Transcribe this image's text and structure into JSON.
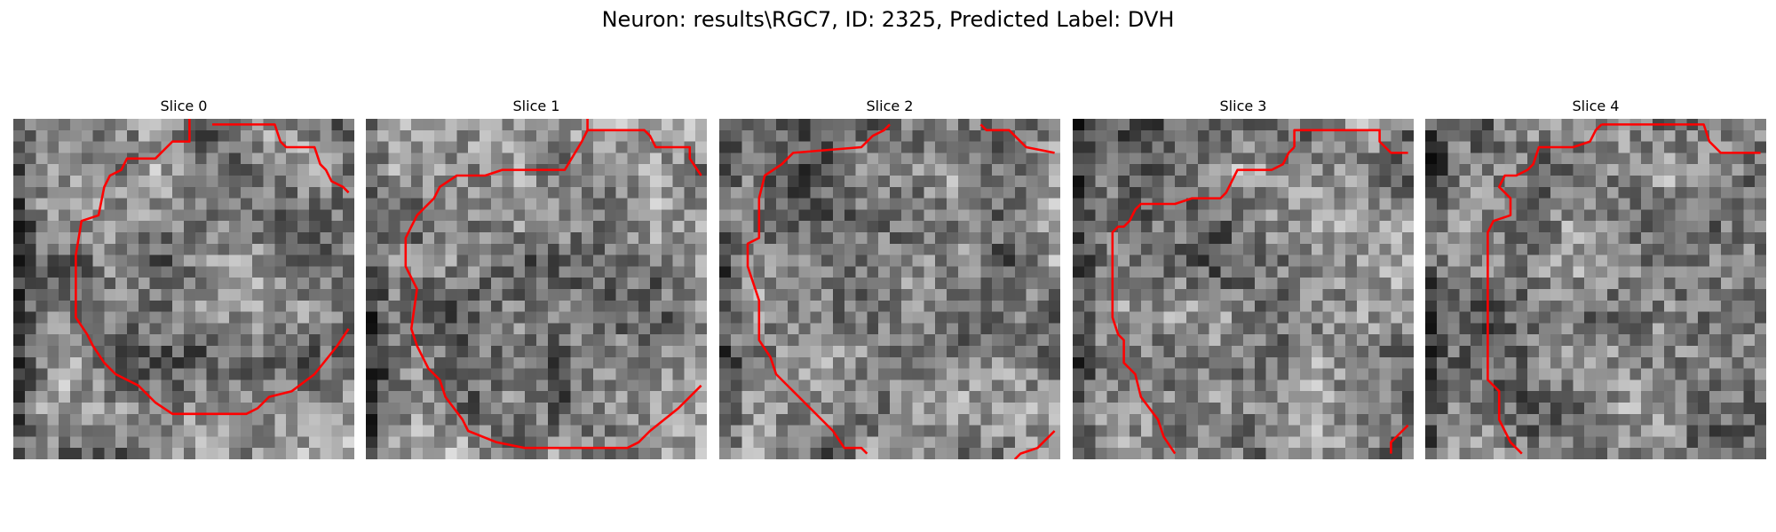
{
  "figure": {
    "title": "Neuron: results\\RGC7, ID: 2325, Predicted Label: DVH",
    "panels": [
      {
        "title": "Slice 0",
        "image": "grayscale-noise-slice",
        "contour_color": "#ff0000"
      },
      {
        "title": "Slice 1",
        "image": "grayscale-noise-slice",
        "contour_color": "#ff0000"
      },
      {
        "title": "Slice 2",
        "image": "grayscale-noise-slice",
        "contour_color": "#ff0000"
      },
      {
        "title": "Slice 3",
        "image": "grayscale-noise-slice",
        "contour_color": "#ff0000"
      },
      {
        "title": "Slice 4",
        "image": "grayscale-noise-slice",
        "contour_color": "#ff0000"
      }
    ]
  }
}
